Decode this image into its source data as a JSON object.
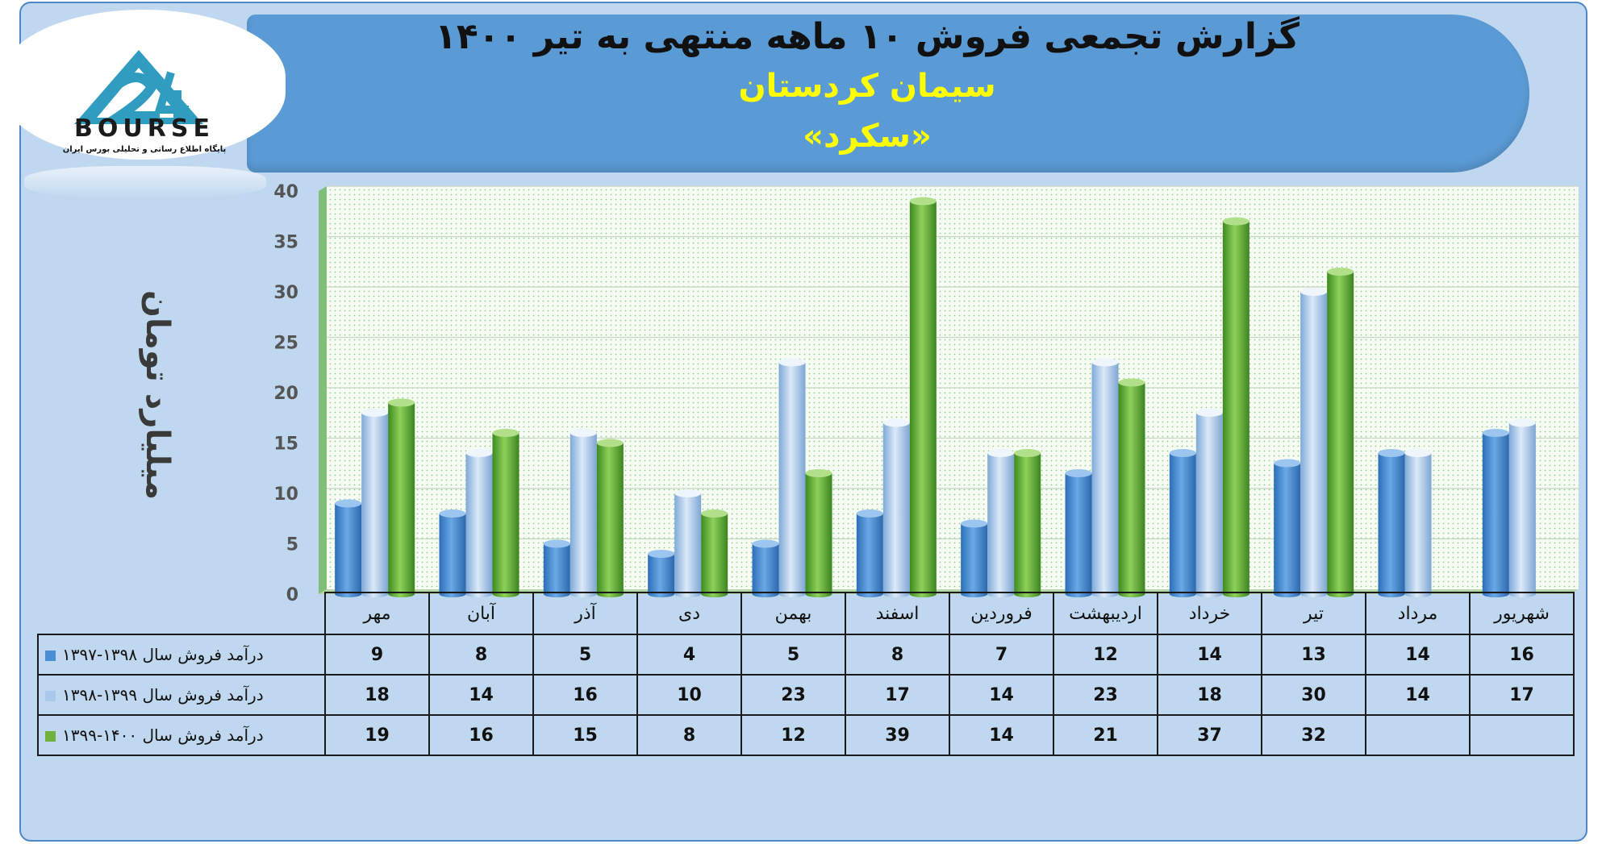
{
  "header": {
    "title": "گزارش تجمعی فروش ۱۰ ماهه منتهی به تیر ۱۴۰۰",
    "subtitle": "سیمان کردستان",
    "ticker": "«سکرد»"
  },
  "logo": {
    "brand": "BOURSE",
    "tagline": "پایگاه اطلاع رسانی و تحلیلی بورس ایران",
    "icon": "triangle-24-logo-icon"
  },
  "colors": {
    "series1": "#4a8fd6",
    "series2": "#a8c8ec",
    "series3": "#6fb23e",
    "header": "#5b9bd5",
    "background": "#c0d8ef"
  },
  "chart_data": {
    "type": "bar",
    "ylabel": "میلیارد تومان",
    "ylim": [
      0,
      40
    ],
    "yticks": [
      "0",
      "5",
      "10",
      "15",
      "20",
      "25",
      "30",
      "35",
      "40"
    ],
    "grid": true,
    "categories": [
      "مهر",
      "آبان",
      "آذر",
      "دی",
      "بهمن",
      "اسفند",
      "فروردین",
      "اردیبهشت",
      "خرداد",
      "تیر",
      "مرداد",
      "شهریور"
    ],
    "series": [
      {
        "name": "درآمد فروش سال ۱۳۹۸-۱۳۹۷",
        "values": [
          9,
          8,
          5,
          4,
          5,
          8,
          7,
          12,
          14,
          13,
          14,
          16
        ]
      },
      {
        "name": "درآمد فروش سال ۱۳۹۹-۱۳۹۸",
        "values": [
          18,
          14,
          16,
          10,
          23,
          17,
          14,
          23,
          18,
          30,
          14,
          17
        ]
      },
      {
        "name": "درآمد فروش سال ۱۴۰۰-۱۳۹۹",
        "values": [
          19,
          16,
          15,
          8,
          12,
          39,
          14,
          21,
          37,
          32,
          null,
          null
        ]
      }
    ]
  }
}
